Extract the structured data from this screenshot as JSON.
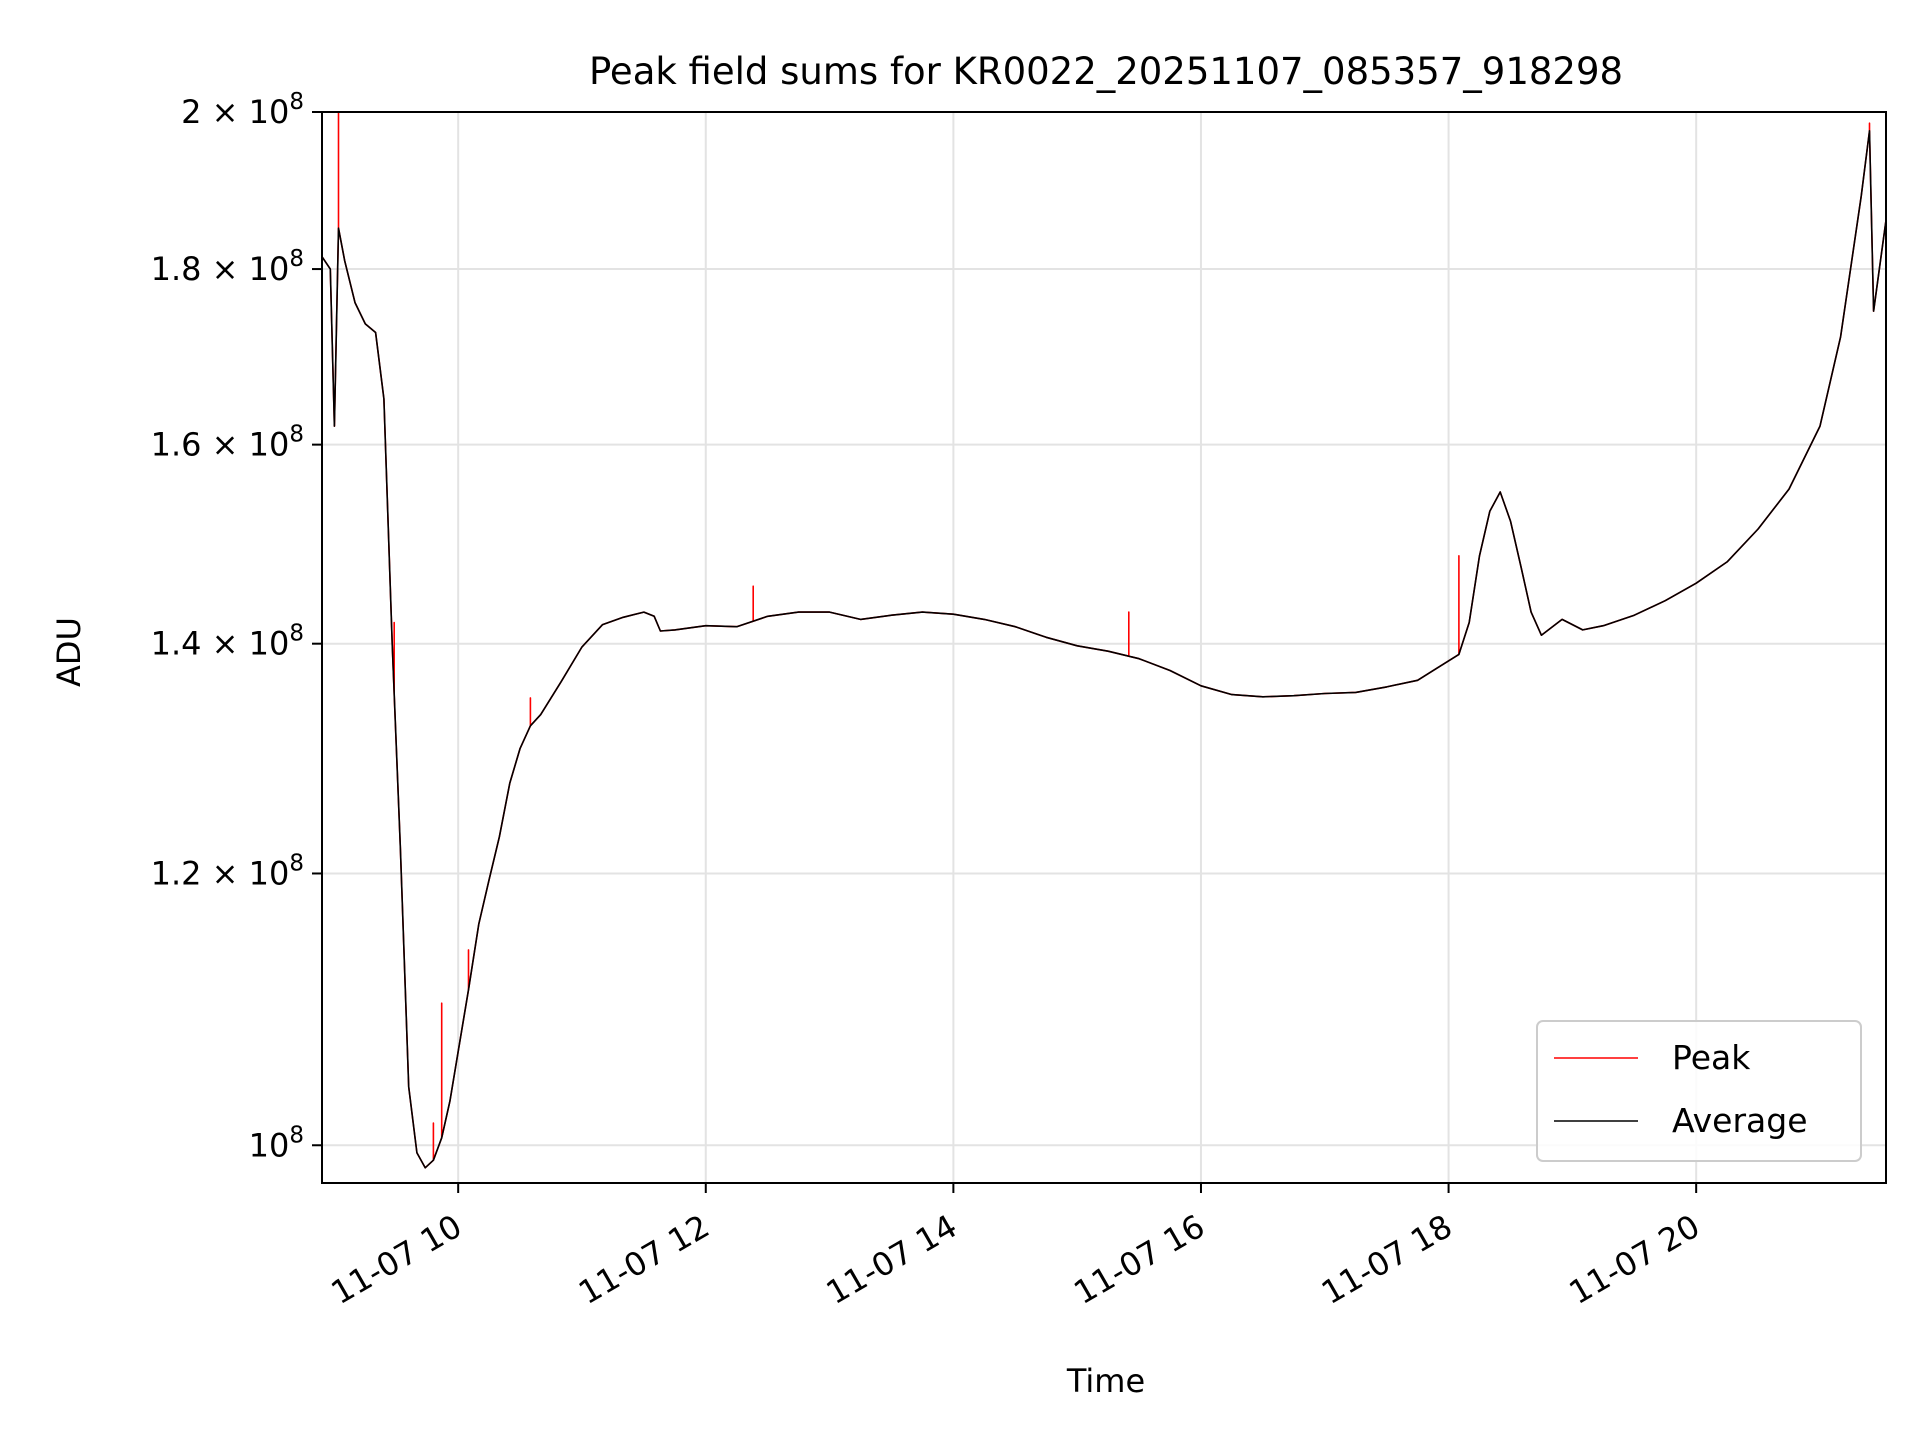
{
  "chart_data": {
    "type": "line",
    "title": "Peak field sums for KR0022_20251107_085357_918298",
    "xlabel": "Time",
    "ylabel": "ADU",
    "yscale": "log",
    "xlim": [
      "2025-11-07 08:54",
      "2025-11-07 21:32"
    ],
    "ylim": [
      97500000,
      200000000
    ],
    "xticks": [
      {
        "t": "2025-11-07 10:00",
        "label": "11-07 10"
      },
      {
        "t": "2025-11-07 12:00",
        "label": "11-07 12"
      },
      {
        "t": "2025-11-07 14:00",
        "label": "11-07 14"
      },
      {
        "t": "2025-11-07 16:00",
        "label": "11-07 16"
      },
      {
        "t": "2025-11-07 18:00",
        "label": "11-07 18"
      },
      {
        "t": "2025-11-07 20:00",
        "label": "11-07 20"
      }
    ],
    "yticks": [
      {
        "v": 100000000,
        "base": "10",
        "exp": "8"
      },
      {
        "v": 120000000,
        "base": "1.2 × 10",
        "exp": "8"
      },
      {
        "v": 140000000,
        "base": "1.4 × 10",
        "exp": "8"
      },
      {
        "v": 160000000,
        "base": "1.6 × 10",
        "exp": "8"
      },
      {
        "v": 180000000,
        "base": "1.8 × 10",
        "exp": "8"
      },
      {
        "v": 200000000,
        "base": "2 × 10",
        "exp": "8"
      }
    ],
    "grid": true,
    "legend_position": "lower-right",
    "series": [
      {
        "name": "Average",
        "color": "#000000",
        "points": [
          [
            "2025-11-07 08:54",
            181500000
          ],
          [
            "2025-11-07 08:58",
            180000000
          ],
          [
            "2025-11-07 09:00",
            162000000
          ],
          [
            "2025-11-07 09:02",
            185000000
          ],
          [
            "2025-11-07 09:05",
            181000000
          ],
          [
            "2025-11-07 09:10",
            176000000
          ],
          [
            "2025-11-07 09:15",
            173500000
          ],
          [
            "2025-11-07 09:20",
            172500000
          ],
          [
            "2025-11-07 09:24",
            165000000
          ],
          [
            "2025-11-07 09:28",
            140000000
          ],
          [
            "2025-11-07 09:32",
            122000000
          ],
          [
            "2025-11-07 09:36",
            104000000
          ],
          [
            "2025-11-07 09:40",
            99500000
          ],
          [
            "2025-11-07 09:44",
            98500000
          ],
          [
            "2025-11-07 09:48",
            99000000
          ],
          [
            "2025-11-07 09:52",
            100500000
          ],
          [
            "2025-11-07 09:56",
            103000000
          ],
          [
            "2025-11-07 10:00",
            106500000
          ],
          [
            "2025-11-07 10:05",
            111000000
          ],
          [
            "2025-11-07 10:10",
            116000000
          ],
          [
            "2025-11-07 10:15",
            119500000
          ],
          [
            "2025-11-07 10:20",
            123000000
          ],
          [
            "2025-11-07 10:25",
            127500000
          ],
          [
            "2025-11-07 10:30",
            130500000
          ],
          [
            "2025-11-07 10:35",
            132500000
          ],
          [
            "2025-11-07 10:40",
            133500000
          ],
          [
            "2025-11-07 10:50",
            136500000
          ],
          [
            "2025-11-07 11:00",
            139700000
          ],
          [
            "2025-11-07 11:10",
            141800000
          ],
          [
            "2025-11-07 11:20",
            142500000
          ],
          [
            "2025-11-07 11:30",
            143000000
          ],
          [
            "2025-11-07 11:35",
            142600000
          ],
          [
            "2025-11-07 11:38",
            141200000
          ],
          [
            "2025-11-07 11:45",
            141300000
          ],
          [
            "2025-11-07 12:00",
            141700000
          ],
          [
            "2025-11-07 12:15",
            141600000
          ],
          [
            "2025-11-07 12:30",
            142600000
          ],
          [
            "2025-11-07 12:45",
            143000000
          ],
          [
            "2025-11-07 13:00",
            143000000
          ],
          [
            "2025-11-07 13:15",
            142300000
          ],
          [
            "2025-11-07 13:30",
            142700000
          ],
          [
            "2025-11-07 13:45",
            143000000
          ],
          [
            "2025-11-07 14:00",
            142800000
          ],
          [
            "2025-11-07 14:15",
            142300000
          ],
          [
            "2025-11-07 14:30",
            141600000
          ],
          [
            "2025-11-07 14:45",
            140600000
          ],
          [
            "2025-11-07 15:00",
            139800000
          ],
          [
            "2025-11-07 15:15",
            139300000
          ],
          [
            "2025-11-07 15:30",
            138600000
          ],
          [
            "2025-11-07 15:45",
            137500000
          ],
          [
            "2025-11-07 16:00",
            136100000
          ],
          [
            "2025-11-07 16:15",
            135300000
          ],
          [
            "2025-11-07 16:30",
            135100000
          ],
          [
            "2025-11-07 16:45",
            135200000
          ],
          [
            "2025-11-07 17:00",
            135400000
          ],
          [
            "2025-11-07 17:15",
            135500000
          ],
          [
            "2025-11-07 17:30",
            136000000
          ],
          [
            "2025-11-07 17:45",
            136600000
          ],
          [
            "2025-11-07 17:55",
            137800000
          ],
          [
            "2025-11-07 18:05",
            139000000
          ],
          [
            "2025-11-07 18:10",
            142000000
          ],
          [
            "2025-11-07 18:15",
            148500000
          ],
          [
            "2025-11-07 18:20",
            153000000
          ],
          [
            "2025-11-07 18:25",
            155000000
          ],
          [
            "2025-11-07 18:30",
            152000000
          ],
          [
            "2025-11-07 18:35",
            147500000
          ],
          [
            "2025-11-07 18:40",
            143000000
          ],
          [
            "2025-11-07 18:45",
            140800000
          ],
          [
            "2025-11-07 18:55",
            142300000
          ],
          [
            "2025-11-07 19:05",
            141300000
          ],
          [
            "2025-11-07 19:15",
            141700000
          ],
          [
            "2025-11-07 19:30",
            142700000
          ],
          [
            "2025-11-07 19:45",
            144100000
          ],
          [
            "2025-11-07 20:00",
            145800000
          ],
          [
            "2025-11-07 20:15",
            147900000
          ],
          [
            "2025-11-07 20:30",
            151200000
          ],
          [
            "2025-11-07 20:45",
            155300000
          ],
          [
            "2025-11-07 21:00",
            162000000
          ],
          [
            "2025-11-07 21:10",
            172000000
          ],
          [
            "2025-11-07 21:20",
            189000000
          ],
          [
            "2025-11-07 21:24",
            197500000
          ],
          [
            "2025-11-07 21:26",
            175000000
          ],
          [
            "2025-11-07 21:32",
            186000000
          ]
        ]
      },
      {
        "name": "Peak",
        "color": "#ff0000",
        "spikes": [
          [
            "2025-11-07 09:02",
            200000000
          ],
          [
            "2025-11-07 09:29",
            142000000
          ],
          [
            "2025-11-07 09:48",
            101500000
          ],
          [
            "2025-11-07 09:52",
            110000000
          ],
          [
            "2025-11-07 10:05",
            114000000
          ],
          [
            "2025-11-07 10:35",
            135000000
          ],
          [
            "2025-11-07 12:23",
            145500000
          ],
          [
            "2025-11-07 15:25",
            143000000
          ],
          [
            "2025-11-07 18:05",
            148500000
          ],
          [
            "2025-11-07 21:24",
            198500000
          ]
        ]
      }
    ]
  }
}
